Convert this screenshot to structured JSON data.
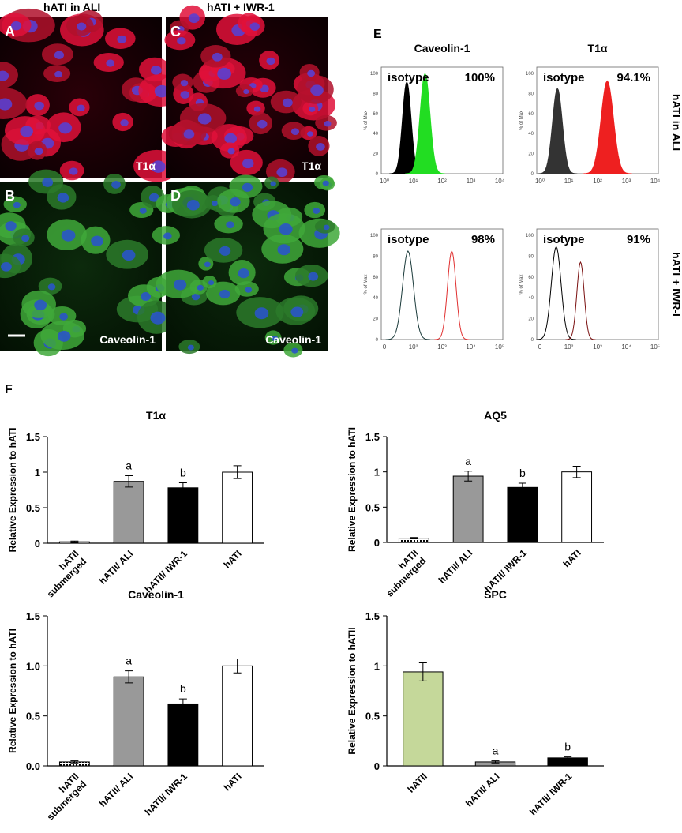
{
  "micrographs": {
    "columns": [
      "hATI in ALI",
      "hATI + IWR-1"
    ],
    "tiles": [
      {
        "letter": "A",
        "label": "T1α"
      },
      {
        "letter": "C",
        "label": "T1α"
      },
      {
        "letter": "B",
        "label": "Caveolin-1"
      },
      {
        "letter": "D",
        "label": "Caveolin-1"
      }
    ]
  },
  "flow": {
    "letter": "E",
    "columns": [
      "Caveolin-1",
      "T1α"
    ],
    "rows": [
      "hATI in ALI",
      "hATI + IWR-I"
    ],
    "y_axis_label": "% of Max",
    "yticks": [
      "0",
      "20",
      "40",
      "60",
      "80",
      "100"
    ],
    "plots": [
      {
        "annotation": "isotype",
        "percent": "100%",
        "xticks": [
          "10⁰",
          "10¹",
          "10²",
          "10³",
          "10⁴"
        ]
      },
      {
        "annotation": "isotype",
        "percent": "94.1%",
        "xticks": [
          "10⁰",
          "10¹",
          "10²",
          "10³",
          "10⁴"
        ]
      },
      {
        "annotation": "isotype",
        "percent": "98%",
        "xticks": [
          "0",
          "10²",
          "10³",
          "10⁴",
          "10⁵"
        ]
      },
      {
        "annotation": "isotype",
        "percent": "91%",
        "xticks": [
          "0",
          "10²",
          "10³",
          "10⁴",
          "10⁵"
        ]
      }
    ]
  },
  "figure_letter": "F",
  "chart_data": [
    {
      "type": "bar",
      "title": "T1α",
      "y_label": "Relative Expression to hATI",
      "categories": [
        "hATII\nsubmerged",
        "hATII/ ALI",
        "hATII/ IWR-1",
        "hATI"
      ],
      "values": [
        0.02,
        0.87,
        0.78,
        1.0
      ],
      "errors": [
        0.01,
        0.08,
        0.07,
        0.09
      ],
      "colors": [
        "#ffffff",
        "#999999",
        "#000000",
        "#ffffff"
      ],
      "bar_labels": [
        null,
        "a",
        "b",
        null
      ],
      "ylim": [
        0,
        1.5
      ],
      "yticks": [
        0,
        0.5,
        1,
        1.5
      ]
    },
    {
      "type": "bar",
      "title": "AQ5",
      "y_label": "Relative Expression to hATI",
      "categories": [
        "hATII\nsubmerged",
        "hATII/ ALI",
        "hATII/ IWR-1",
        "hATI"
      ],
      "values": [
        0.06,
        0.94,
        0.78,
        1.0
      ],
      "errors": [
        0.01,
        0.07,
        0.06,
        0.08
      ],
      "colors": [
        "#ffffff",
        "#999999",
        "#000000",
        "#ffffff"
      ],
      "bar_labels": [
        null,
        "a",
        "b",
        null
      ],
      "ylim": [
        0,
        1.5
      ],
      "yticks": [
        0,
        0.5,
        1,
        1.5
      ]
    },
    {
      "type": "bar",
      "title": "Caveolin-1",
      "y_label": "Relative Expression to hATI",
      "categories": [
        "hATII\nsubmerged",
        "hATII/ ALI",
        "hATII/ IWR-1",
        "hATI"
      ],
      "values": [
        0.04,
        0.89,
        0.62,
        1.0
      ],
      "errors": [
        0.01,
        0.06,
        0.05,
        0.07
      ],
      "colors": [
        "#ffffff",
        "#999999",
        "#000000",
        "#ffffff"
      ],
      "bar_labels": [
        null,
        "a",
        "b",
        null
      ],
      "ylim": [
        0,
        1.5
      ],
      "yticks": [
        {
          "value": 0,
          "label": "0.0"
        },
        {
          "value": 0.5,
          "label": "0.5"
        },
        {
          "value": 1,
          "label": "1.0"
        },
        {
          "value": 1.5,
          "label": "1.5"
        }
      ]
    },
    {
      "type": "bar",
      "title": "SPC",
      "y_label": "Relative Expression to hATII",
      "categories": [
        "hATII",
        "hATII/ ALI",
        "hATII/ IWR-1"
      ],
      "values": [
        0.94,
        0.04,
        0.08
      ],
      "errors": [
        0.09,
        0.01,
        0.01
      ],
      "colors": [
        "#c5d89a",
        "#999999",
        "#000000"
      ],
      "bar_labels": [
        null,
        "a",
        "b"
      ],
      "ylim": [
        0,
        1.5
      ],
      "yticks": [
        0,
        0.5,
        1,
        1.5
      ]
    }
  ]
}
